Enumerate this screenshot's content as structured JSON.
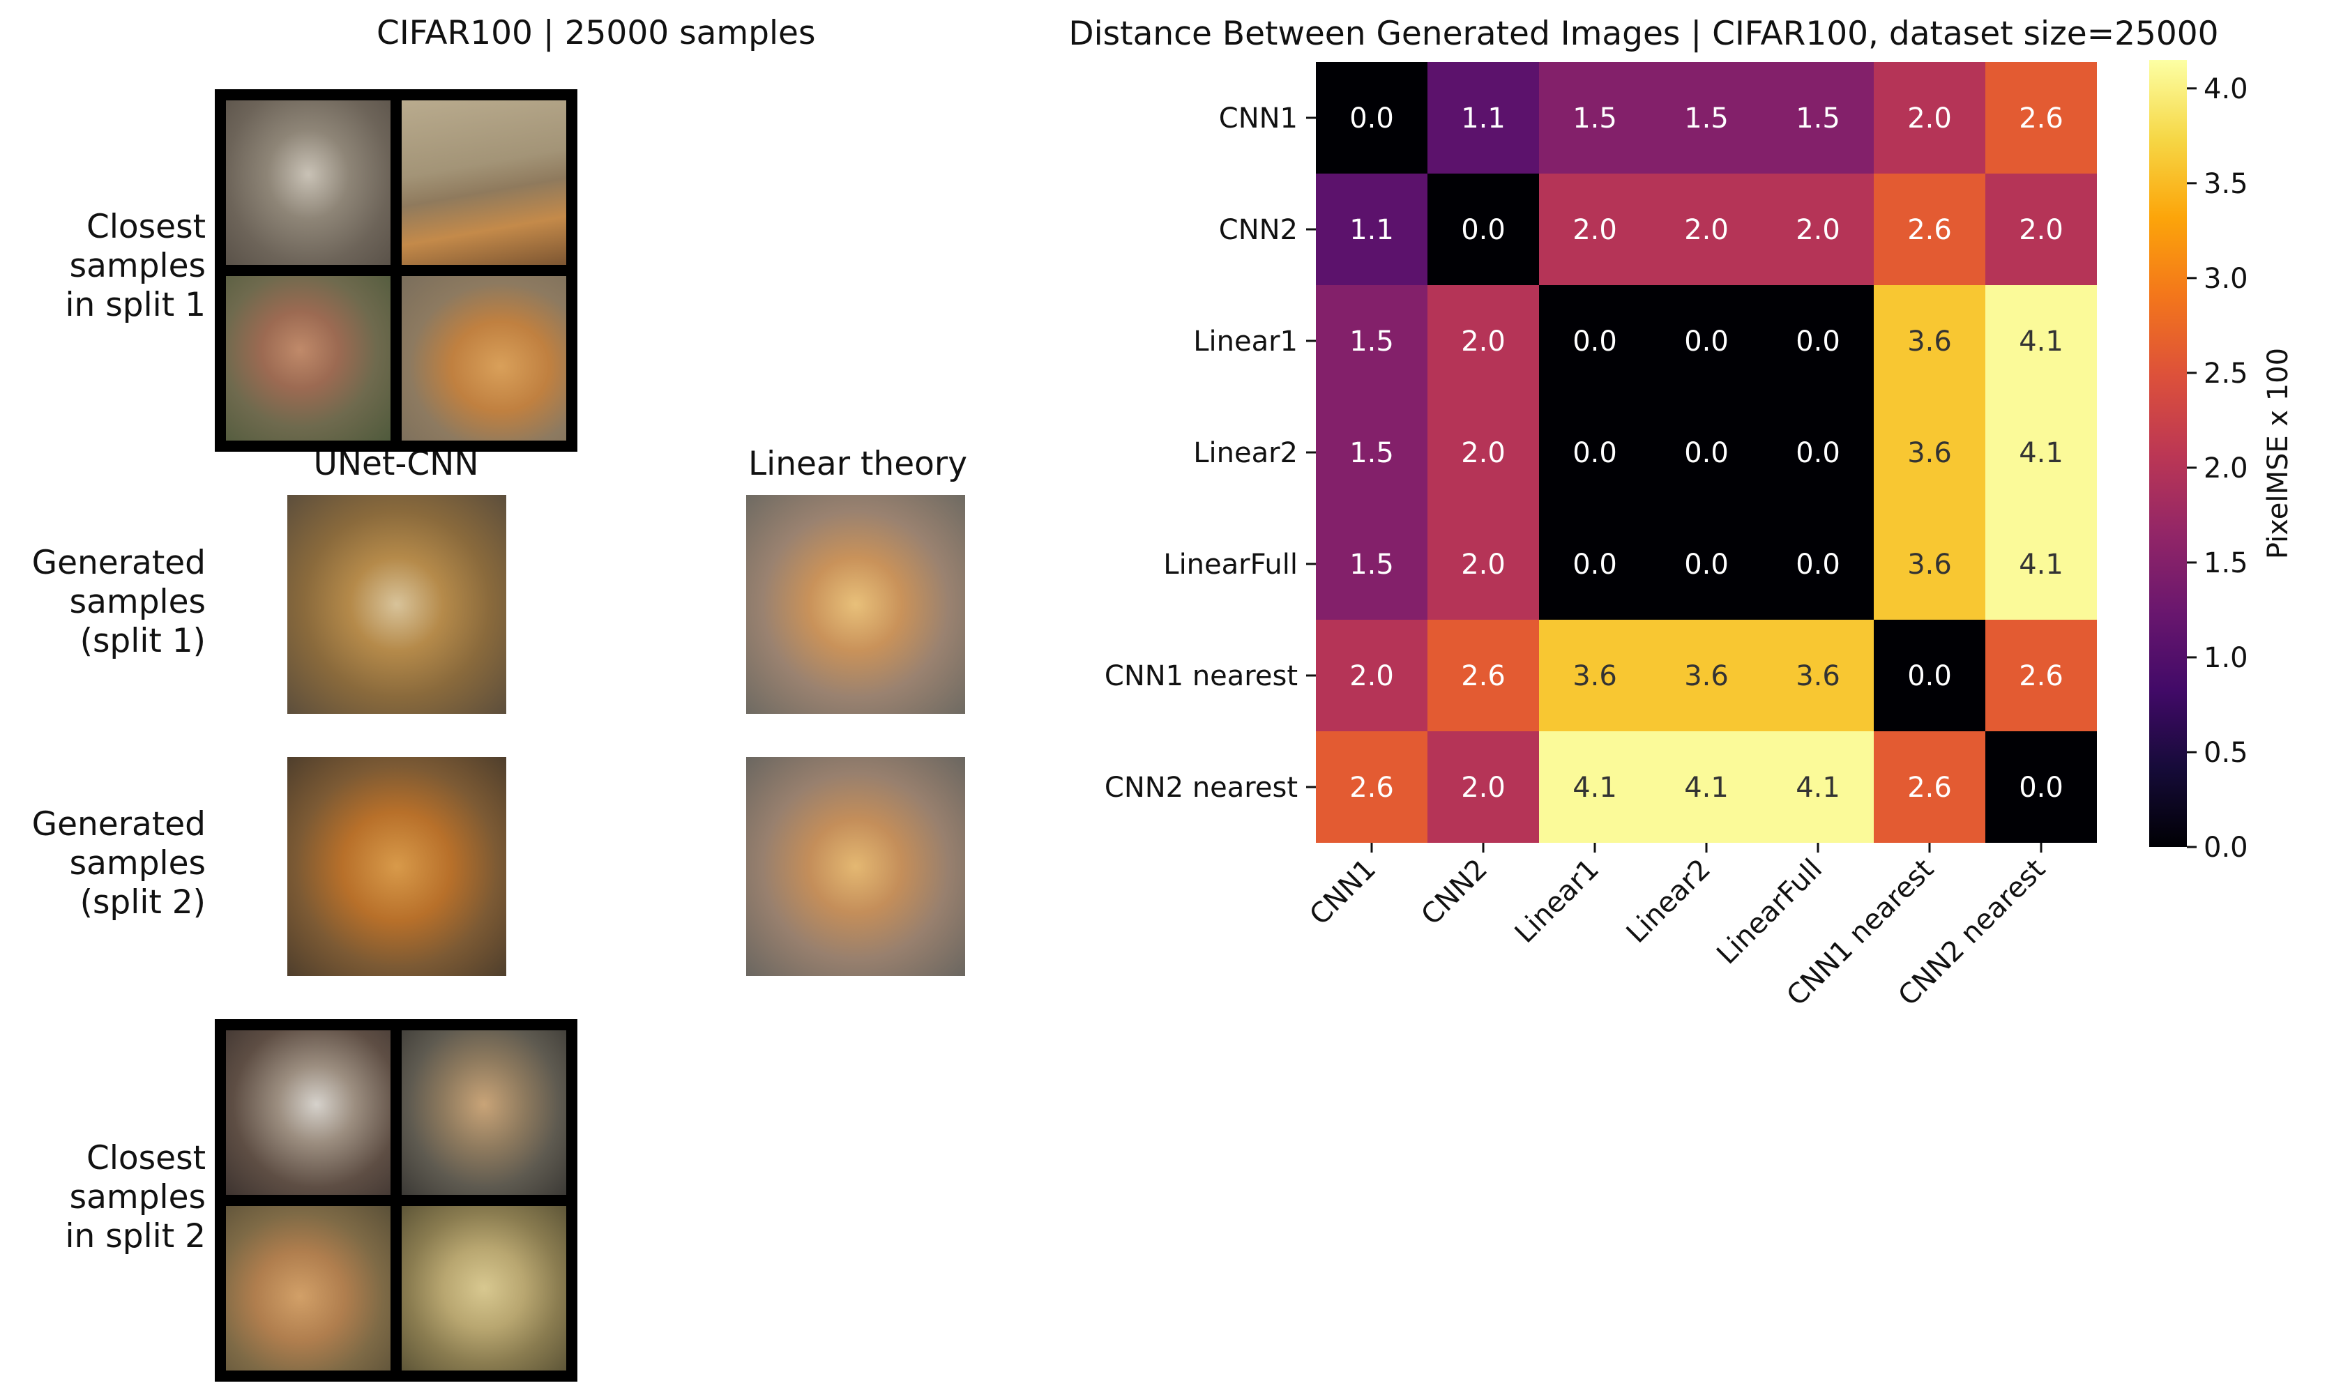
{
  "left_panel": {
    "title": "CIFAR100 | 25000 samples",
    "row_labels": {
      "closest_split1": [
        "Closest",
        "samples",
        "in split 1"
      ],
      "generated_split1": [
        "Generated",
        "samples",
        "(split 1)"
      ],
      "generated_split2": [
        "Generated",
        "samples",
        "(split 2)"
      ],
      "closest_split2": [
        "Closest",
        "samples",
        "in split 2"
      ]
    },
    "column_titles": {
      "unet": "UNet-CNN",
      "linear": "Linear theory"
    }
  },
  "chart_data": {
    "type": "heatmap",
    "title": "Distance Between Generated Images | CIFAR100, dataset size=25000",
    "row_labels": [
      "CNN1",
      "CNN2",
      "Linear1",
      "Linear2",
      "LinearFull",
      "CNN1 nearest",
      "CNN2 nearest"
    ],
    "col_labels": [
      "CNN1",
      "CNN2",
      "Linear1",
      "Linear2",
      "LinearFull",
      "CNN1 nearest",
      "CNN2 nearest"
    ],
    "values": [
      [
        0.0,
        1.1,
        1.5,
        1.5,
        1.5,
        2.0,
        2.6
      ],
      [
        1.1,
        0.0,
        2.0,
        2.0,
        2.0,
        2.6,
        2.0
      ],
      [
        1.5,
        2.0,
        0.0,
        0.0,
        0.0,
        3.6,
        4.1
      ],
      [
        1.5,
        2.0,
        0.0,
        0.0,
        0.0,
        3.6,
        4.1
      ],
      [
        1.5,
        2.0,
        0.0,
        0.0,
        0.0,
        3.6,
        4.1
      ],
      [
        2.0,
        2.6,
        3.6,
        3.6,
        3.6,
        0.0,
        2.6
      ],
      [
        2.6,
        2.0,
        4.1,
        4.1,
        4.1,
        2.6,
        0.0
      ]
    ],
    "colormap": "inferno",
    "colorbar": {
      "label": "PixelMSE x 100",
      "min": 0.0,
      "max": 4.15,
      "ticks": [
        "0.0",
        "0.5",
        "1.0",
        "1.5",
        "2.0",
        "2.5",
        "3.0",
        "3.5",
        "4.0"
      ]
    }
  }
}
